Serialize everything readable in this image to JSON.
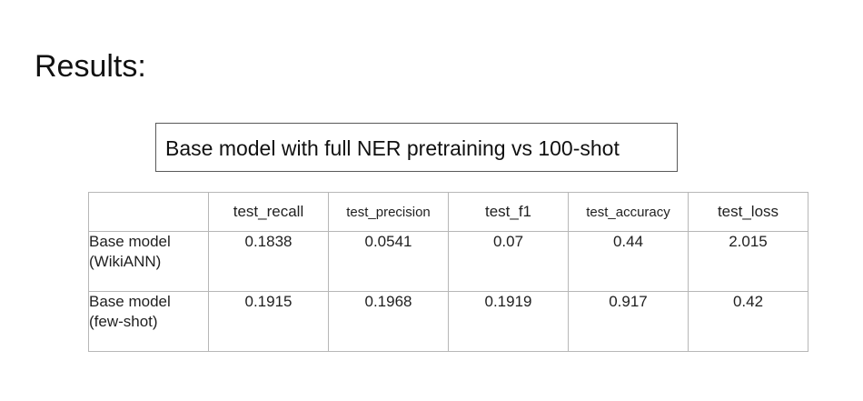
{
  "heading": "Results:",
  "subtitle": "Base model with full NER pretraining vs 100-shot",
  "table": {
    "columns": [
      "test_recall",
      "test_precision",
      "test_f1",
      "test_accuracy",
      "test_loss"
    ],
    "rows": [
      {
        "label_line1": "Base model",
        "label_line2": "(WikiANN)",
        "values": [
          "0.1838",
          "0.0541",
          "0.07",
          "0.44",
          "2.015"
        ]
      },
      {
        "label_line1": "Base model",
        "label_line2": "(few-shot)",
        "values": [
          "0.1915",
          "0.1968",
          "0.1919",
          "0.917",
          "0.42"
        ]
      }
    ]
  }
}
